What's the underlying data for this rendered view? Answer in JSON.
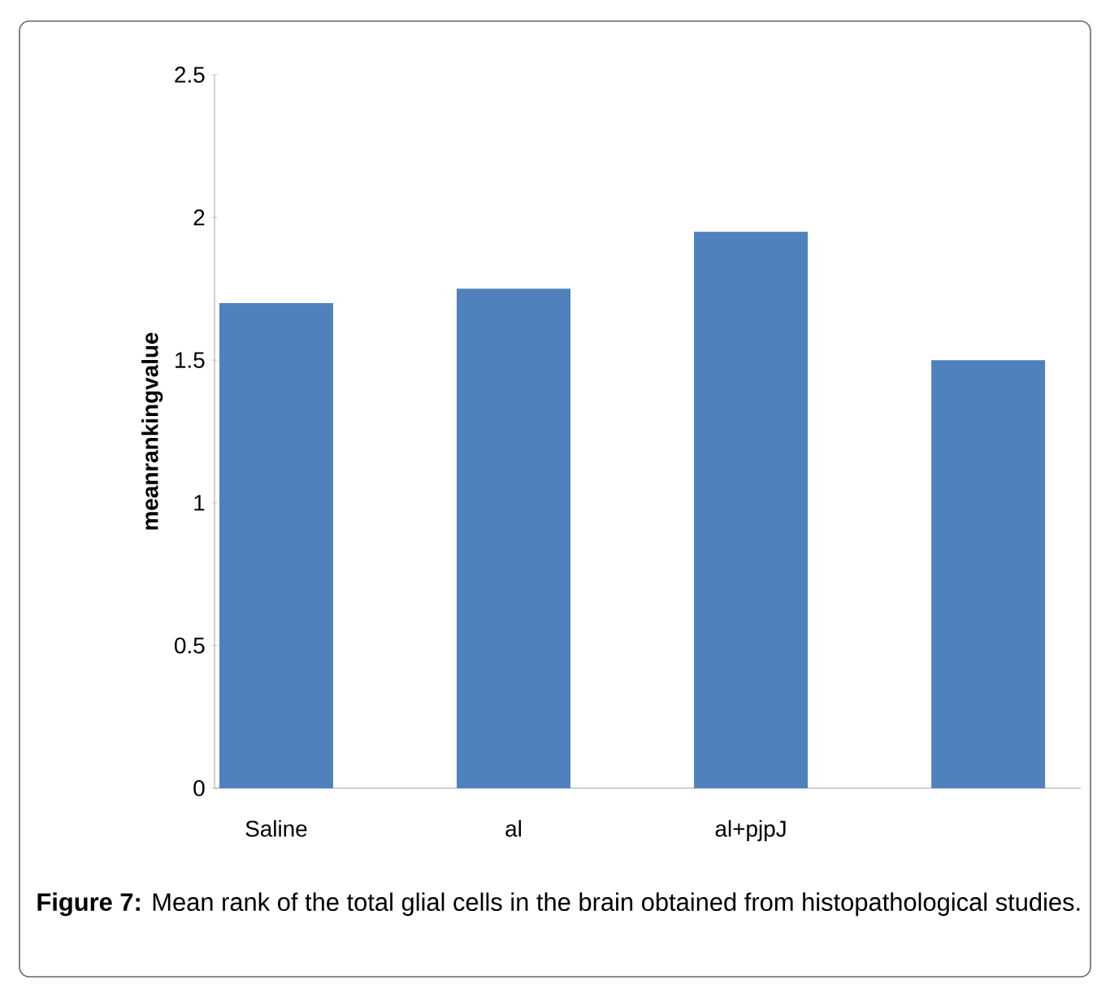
{
  "chart_data": {
    "type": "bar",
    "categories": [
      "Saline",
      "al",
      "al+pjpJ",
      null
    ],
    "values": [
      1.7,
      1.75,
      1.95,
      1.5
    ],
    "color": "#4f81bd",
    "ylabel": "meanrankingvalue",
    "ylim": [
      0,
      2.5
    ],
    "yticks": [
      0,
      0.5,
      1,
      1.5,
      2,
      2.5
    ],
    "grid": false,
    "annotations": [
      "**Figure 7:** Mean rank of the total glial cells in the brain obtained from histopathological studies."
    ]
  }
}
